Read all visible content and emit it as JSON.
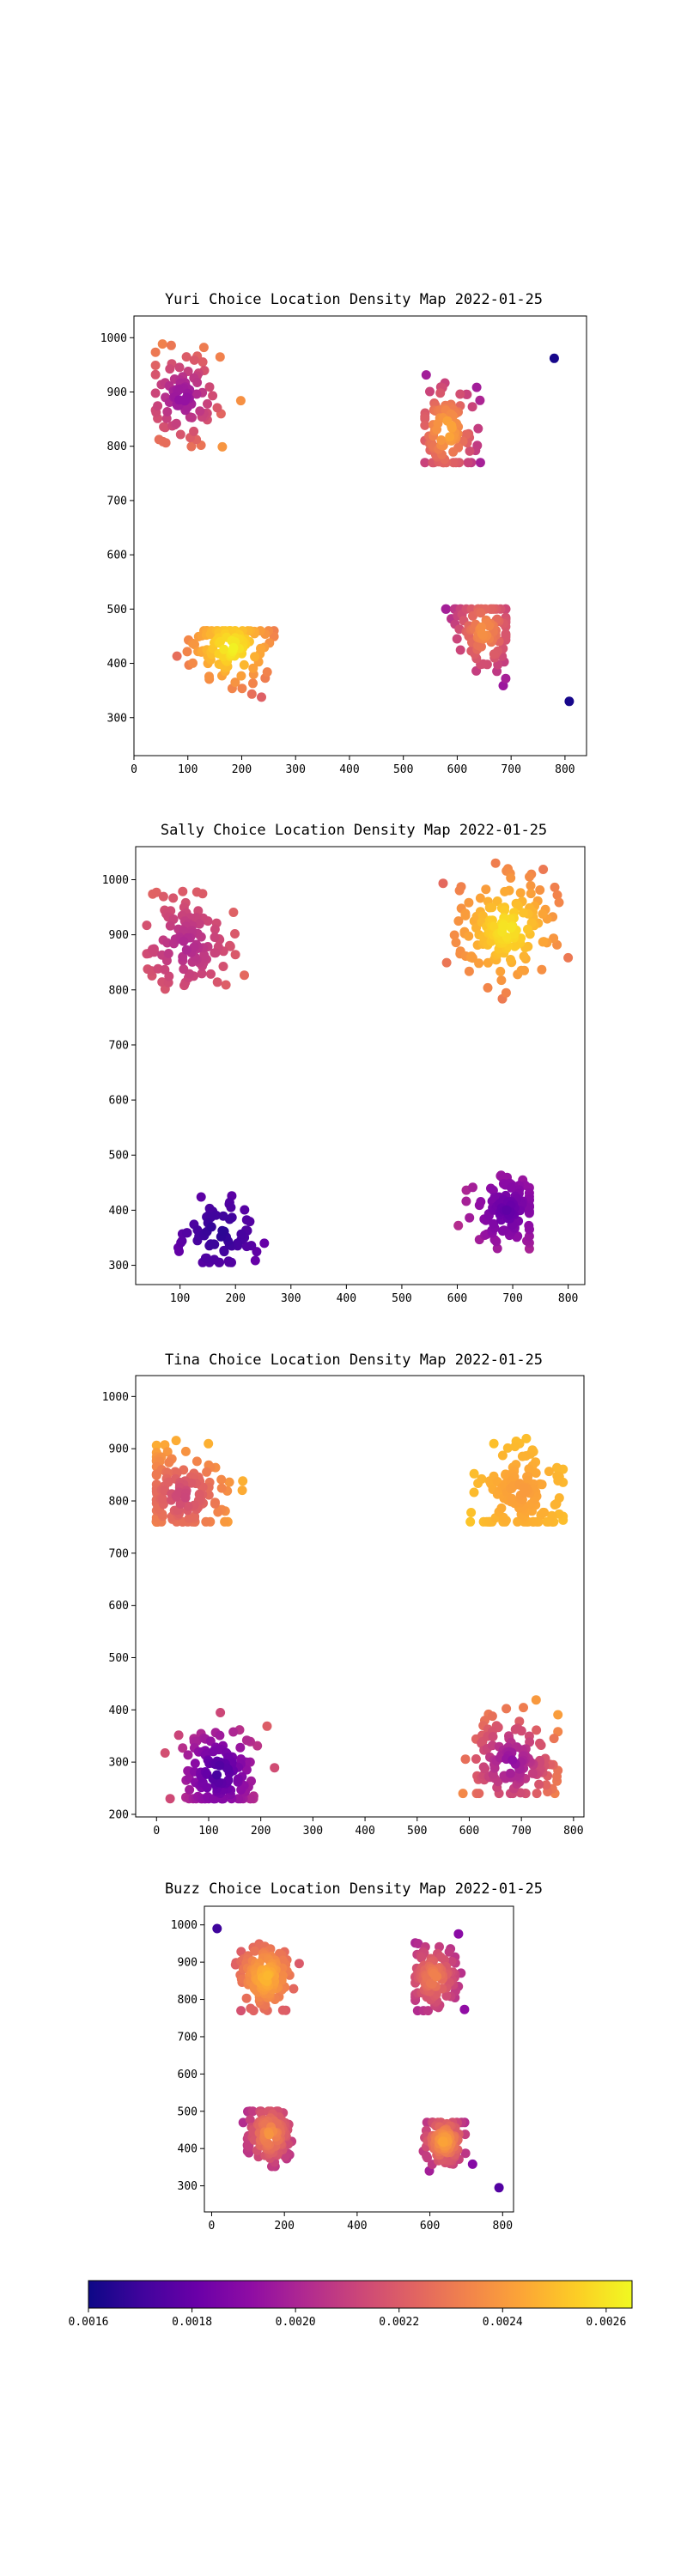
{
  "colormap": "plasma",
  "colormap_stops": [
    "#0d0887",
    "#41049d",
    "#6a00a8",
    "#8f0da4",
    "#b12a90",
    "#cc4778",
    "#e16462",
    "#f2844b",
    "#fca636",
    "#fcce25",
    "#f0f921"
  ],
  "colorbar": {
    "min": 0.0016,
    "max": 0.00265,
    "ticks": [
      "0.0016",
      "0.0018",
      "0.0020",
      "0.0022",
      "0.0024",
      "0.0026"
    ],
    "tick_values": [
      0.0016,
      0.0018,
      0.002,
      0.0022,
      0.0024,
      0.0026
    ],
    "orientation": "horizontal"
  },
  "chart_data": [
    {
      "type": "scatter",
      "title": "Yuri Choice Location Density Map 2022-01-25",
      "xlim": [
        0,
        840
      ],
      "ylim": [
        230,
        1040
      ],
      "xticks": [
        0,
        100,
        200,
        300,
        400,
        500,
        600,
        700,
        800
      ],
      "yticks": [
        300,
        400,
        500,
        600,
        700,
        800,
        900,
        1000
      ],
      "clusters": [
        {
          "x": [
            40,
            260
          ],
          "y": [
            760,
            1000
          ],
          "center": [
            90,
            890
          ],
          "peak": 0.0019,
          "edge": 0.0025,
          "n": 90
        },
        {
          "x": [
            540,
            690
          ],
          "y": [
            770,
            1000
          ],
          "center": [
            580,
            830
          ],
          "peak": 0.0025,
          "edge": 0.00185,
          "n": 100
        },
        {
          "x": [
            50,
            260
          ],
          "y": [
            265,
            460
          ],
          "center": [
            180,
            430
          ],
          "peak": 0.00265,
          "edge": 0.00215,
          "n": 110
        },
        {
          "x": [
            530,
            690
          ],
          "y": [
            280,
            500
          ],
          "center": [
            650,
            460
          ],
          "peak": 0.0024,
          "edge": 0.00185,
          "n": 100
        }
      ],
      "points": [
        {
          "x": 780,
          "y": 962,
          "value": 0.00162
        },
        {
          "x": 808,
          "y": 330,
          "value": 0.00162
        }
      ]
    },
    {
      "type": "scatter",
      "title": "Sally Choice Location Density Map 2022-01-25",
      "xlim": [
        20,
        830
      ],
      "ylim": [
        265,
        1060
      ],
      "xticks": [
        100,
        200,
        300,
        400,
        500,
        600,
        700,
        800
      ],
      "yticks": [
        300,
        400,
        500,
        600,
        700,
        800,
        900,
        1000
      ],
      "clusters": [
        {
          "x": [
            40,
            270
          ],
          "y": [
            760,
            1000
          ],
          "center": [
            110,
            880
          ],
          "peak": 0.002,
          "edge": 0.0023,
          "n": 110
        },
        {
          "x": [
            550,
            800
          ],
          "y": [
            760,
            1030
          ],
          "center": [
            690,
            910
          ],
          "peak": 0.00262,
          "edge": 0.0022,
          "n": 150
        },
        {
          "x": [
            90,
            270
          ],
          "y": [
            305,
            490
          ],
          "center": [
            170,
            360
          ],
          "peak": 0.00165,
          "edge": 0.00185,
          "n": 70
        },
        {
          "x": [
            540,
            730
          ],
          "y": [
            305,
            500
          ],
          "center": [
            690,
            400
          ],
          "peak": 0.00178,
          "edge": 0.0021,
          "n": 110
        }
      ],
      "points": []
    },
    {
      "type": "scatter",
      "title": "Tina Choice Location Density Map 2022-01-25",
      "xlim": [
        -40,
        820
      ],
      "ylim": [
        195,
        1040
      ],
      "xticks": [
        0,
        100,
        200,
        300,
        400,
        500,
        600,
        700,
        800
      ],
      "yticks": [
        200,
        300,
        400,
        500,
        600,
        700,
        800,
        900,
        1000
      ],
      "clusters": [
        {
          "x": [
            0,
            260
          ],
          "y": [
            760,
            1000
          ],
          "center": [
            50,
            810
          ],
          "peak": 0.0021,
          "edge": 0.0026,
          "n": 140
        },
        {
          "x": [
            550,
            780
          ],
          "y": [
            760,
            990
          ],
          "center": [
            700,
            820
          ],
          "peak": 0.0024,
          "edge": 0.00255,
          "n": 140
        },
        {
          "x": [
            10,
            240
          ],
          "y": [
            230,
            490
          ],
          "center": [
            120,
            280
          ],
          "peak": 0.0017,
          "edge": 0.0023,
          "n": 130
        },
        {
          "x": [
            540,
            770
          ],
          "y": [
            240,
            490
          ],
          "center": [
            680,
            300
          ],
          "peak": 0.0019,
          "edge": 0.0025,
          "n": 130
        }
      ],
      "points": []
    },
    {
      "type": "scatter",
      "title": "Buzz Choice Location Density Map 2022-01-25",
      "xlim": [
        -20,
        830
      ],
      "ylim": [
        230,
        1050
      ],
      "xticks": [
        0,
        200,
        400,
        600,
        800
      ],
      "yticks": [
        300,
        400,
        500,
        600,
        700,
        800,
        900,
        1000
      ],
      "clusters": [
        {
          "x": [
            60,
            260
          ],
          "y": [
            770,
            1000
          ],
          "center": [
            150,
            860
          ],
          "peak": 0.0025,
          "edge": 0.0021,
          "n": 130
        },
        {
          "x": [
            560,
            760
          ],
          "y": [
            770,
            1030
          ],
          "center": [
            610,
            860
          ],
          "peak": 0.00235,
          "edge": 0.00185,
          "n": 110
        },
        {
          "x": [
            70,
            250
          ],
          "y": [
            260,
            500
          ],
          "center": [
            160,
            440
          ],
          "peak": 0.0024,
          "edge": 0.00185,
          "n": 110
        },
        {
          "x": [
            560,
            720
          ],
          "y": [
            280,
            470
          ],
          "center": [
            640,
            420
          ],
          "peak": 0.00245,
          "edge": 0.00185,
          "n": 110
        }
      ],
      "points": [
        {
          "x": 15,
          "y": 990,
          "value": 0.0017
        },
        {
          "x": 790,
          "y": 295,
          "value": 0.00175
        }
      ]
    }
  ]
}
